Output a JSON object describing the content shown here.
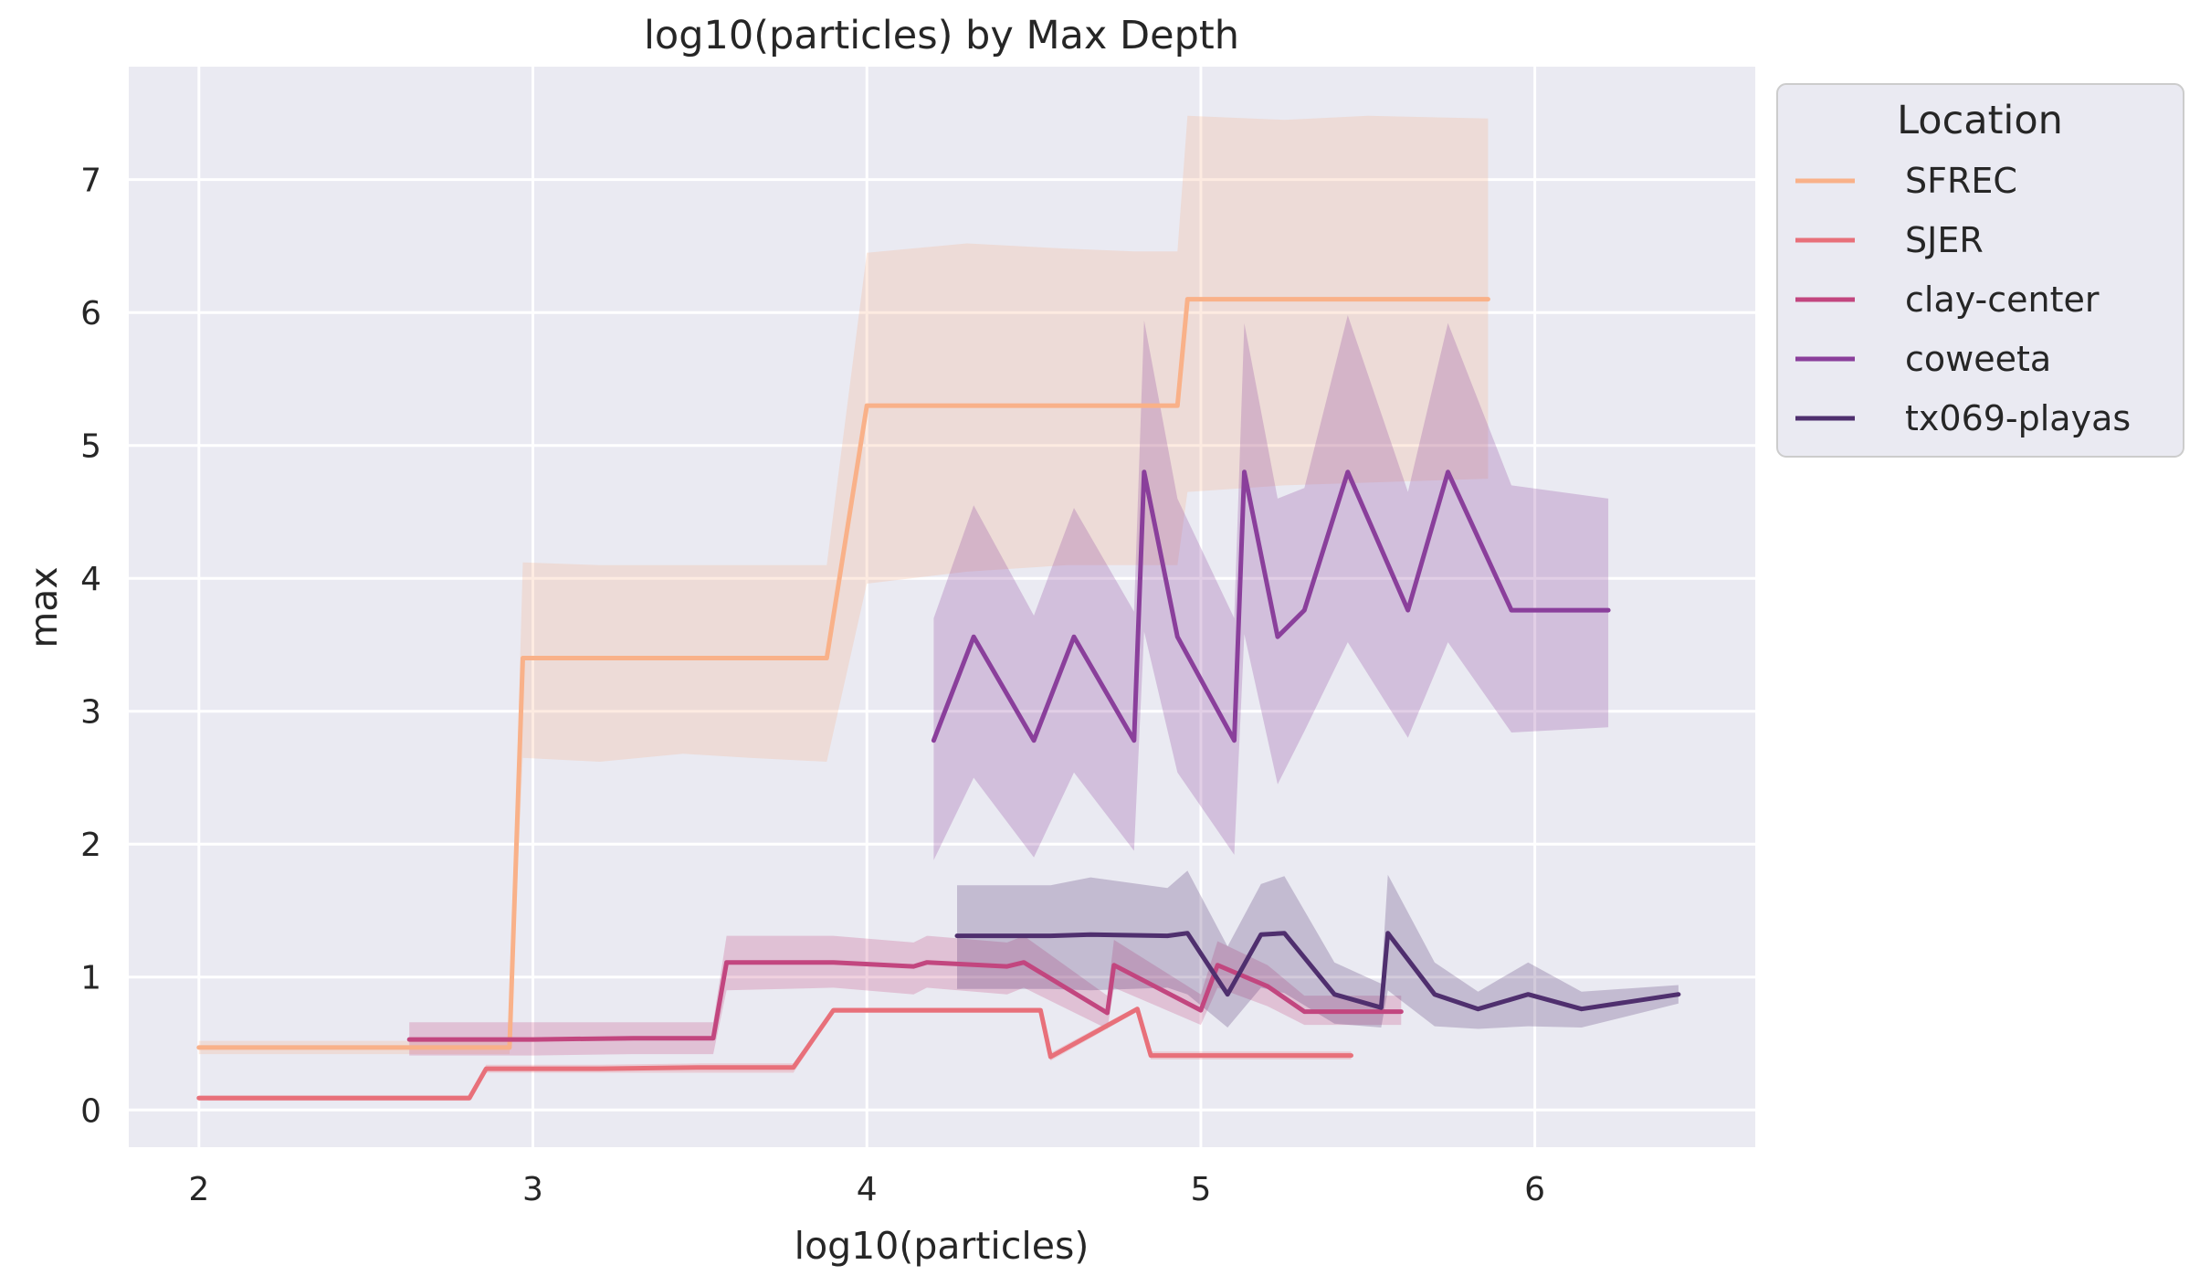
{
  "chart_data": {
    "type": "line",
    "title": "log10(particles) by Max Depth",
    "xlabel": "log10(particles)",
    "ylabel": "max",
    "xlim": [
      1.79,
      6.66
    ],
    "ylim": [
      -0.28,
      7.85
    ],
    "xticks": [
      2,
      3,
      4,
      5,
      6
    ],
    "yticks": [
      0,
      1,
      2,
      3,
      4,
      5,
      6,
      7
    ],
    "grid": true,
    "background": "#eaeaf2",
    "legend": {
      "title": "Location",
      "placement": "outside-upper-right"
    },
    "series": [
      {
        "name": "SFREC",
        "color": "#f9b189",
        "x": [
          2.0,
          2.2,
          2.4,
          2.6,
          2.75,
          2.93,
          2.97,
          3.2,
          3.45,
          3.65,
          3.88,
          4.0,
          4.3,
          4.6,
          4.8,
          4.93,
          4.96,
          5.25,
          5.5,
          5.86
        ],
        "y": [
          0.47,
          0.47,
          0.47,
          0.47,
          0.47,
          0.47,
          3.4,
          3.4,
          3.4,
          3.4,
          3.4,
          5.3,
          5.3,
          5.3,
          5.3,
          5.3,
          6.1,
          6.1,
          6.1,
          6.1
        ],
        "lower": [
          0.42,
          0.42,
          0.42,
          0.42,
          0.42,
          0.42,
          2.65,
          2.62,
          2.68,
          2.65,
          2.62,
          3.96,
          4.05,
          4.1,
          4.1,
          4.1,
          4.65,
          4.7,
          4.72,
          4.75
        ],
        "upper": [
          0.52,
          0.52,
          0.52,
          0.52,
          0.52,
          0.52,
          4.12,
          4.1,
          4.1,
          4.1,
          4.1,
          6.45,
          6.52,
          6.48,
          6.46,
          6.46,
          7.48,
          7.45,
          7.48,
          7.46
        ]
      },
      {
        "name": "SJER",
        "color": "#e8707a",
        "x": [
          2.0,
          2.3,
          2.6,
          2.81,
          2.86,
          3.2,
          3.5,
          3.78,
          3.9,
          4.2,
          4.52,
          4.55,
          4.81,
          4.85,
          5.1,
          5.45
        ],
        "y": [
          0.09,
          0.09,
          0.09,
          0.09,
          0.31,
          0.31,
          0.32,
          0.32,
          0.75,
          0.75,
          0.75,
          0.4,
          0.76,
          0.41,
          0.41,
          0.41
        ],
        "lower": [
          0.07,
          0.07,
          0.07,
          0.07,
          0.28,
          0.28,
          0.28,
          0.28,
          0.73,
          0.73,
          0.73,
          0.37,
          0.74,
          0.38,
          0.38,
          0.38
        ],
        "upper": [
          0.11,
          0.11,
          0.11,
          0.11,
          0.34,
          0.34,
          0.35,
          0.35,
          0.77,
          0.77,
          0.77,
          0.43,
          0.78,
          0.44,
          0.44,
          0.44
        ]
      },
      {
        "name": "clay-center",
        "color": "#c2467f",
        "x": [
          2.63,
          3.0,
          3.3,
          3.54,
          3.58,
          3.9,
          4.14,
          4.18,
          4.42,
          4.47,
          4.72,
          4.74,
          5.0,
          5.05,
          5.2,
          5.31,
          5.45,
          5.6
        ],
        "y": [
          0.53,
          0.53,
          0.54,
          0.54,
          1.11,
          1.11,
          1.08,
          1.11,
          1.08,
          1.11,
          0.73,
          1.09,
          0.75,
          1.09,
          0.93,
          0.74,
          0.74,
          0.74
        ],
        "lower": [
          0.41,
          0.41,
          0.42,
          0.42,
          0.9,
          0.92,
          0.87,
          0.92,
          0.87,
          0.92,
          0.61,
          0.92,
          0.64,
          0.92,
          0.78,
          0.64,
          0.64,
          0.64
        ],
        "upper": [
          0.66,
          0.66,
          0.66,
          0.66,
          1.31,
          1.31,
          1.26,
          1.31,
          1.26,
          1.31,
          0.86,
          1.28,
          0.87,
          1.27,
          1.09,
          0.86,
          0.86,
          0.86
        ]
      },
      {
        "name": "coweeta",
        "color": "#8a3f9b",
        "x": [
          4.2,
          4.32,
          4.5,
          4.62,
          4.8,
          4.83,
          4.93,
          5.1,
          5.13,
          5.23,
          5.31,
          5.44,
          5.62,
          5.74,
          5.93,
          6.22
        ],
        "y": [
          2.78,
          3.56,
          2.78,
          3.56,
          2.78,
          4.8,
          3.56,
          2.78,
          4.8,
          3.56,
          3.76,
          4.8,
          3.76,
          4.8,
          3.76,
          3.76
        ],
        "lower": [
          1.88,
          2.5,
          1.9,
          2.54,
          1.95,
          3.6,
          2.54,
          1.92,
          3.58,
          2.45,
          2.85,
          3.52,
          2.8,
          3.52,
          2.84,
          2.88
        ],
        "upper": [
          3.7,
          4.55,
          3.72,
          4.53,
          3.75,
          5.94,
          4.6,
          3.7,
          5.92,
          4.6,
          4.68,
          5.98,
          4.65,
          5.92,
          4.7,
          4.6
        ]
      },
      {
        "name": "tx069-playas",
        "color": "#4f2f6e",
        "x": [
          4.27,
          4.55,
          4.67,
          4.9,
          4.96,
          5.08,
          5.18,
          5.25,
          5.4,
          5.54,
          5.56,
          5.7,
          5.83,
          5.98,
          6.14,
          6.43
        ],
        "y": [
          1.31,
          1.31,
          1.32,
          1.31,
          1.33,
          0.87,
          1.32,
          1.33,
          0.87,
          0.77,
          1.33,
          0.87,
          0.76,
          0.87,
          0.76,
          0.87
        ],
        "lower": [
          0.91,
          0.91,
          0.9,
          0.92,
          0.87,
          0.62,
          0.92,
          0.88,
          0.65,
          0.62,
          0.9,
          0.63,
          0.61,
          0.63,
          0.62,
          0.8
        ],
        "upper": [
          1.69,
          1.69,
          1.75,
          1.67,
          1.8,
          1.23,
          1.7,
          1.76,
          1.11,
          0.95,
          1.77,
          1.11,
          0.89,
          1.11,
          0.89,
          0.94
        ]
      }
    ]
  }
}
